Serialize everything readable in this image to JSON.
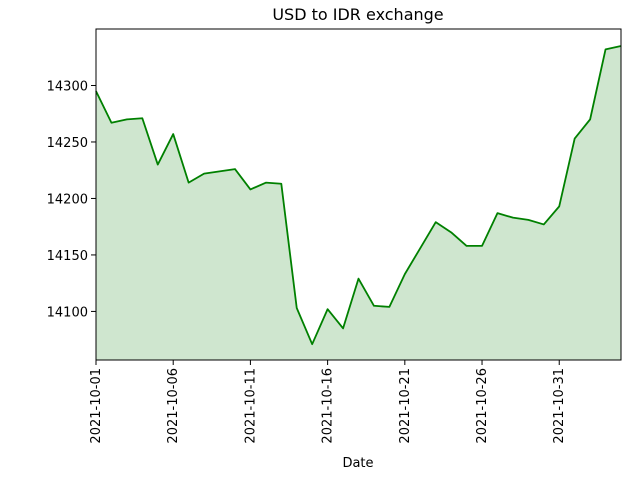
{
  "chart_data": {
    "type": "area",
    "title": "USD to IDR exchange",
    "xlabel": "Date",
    "ylabel": "",
    "x": [
      "2021-10-01",
      "2021-10-02",
      "2021-10-03",
      "2021-10-04",
      "2021-10-05",
      "2021-10-06",
      "2021-10-07",
      "2021-10-08",
      "2021-10-09",
      "2021-10-10",
      "2021-10-11",
      "2021-10-12",
      "2021-10-13",
      "2021-10-14",
      "2021-10-15",
      "2021-10-16",
      "2021-10-17",
      "2021-10-18",
      "2021-10-19",
      "2021-10-20",
      "2021-10-21",
      "2021-10-22",
      "2021-10-23",
      "2021-10-24",
      "2021-10-25",
      "2021-10-26",
      "2021-10-27",
      "2021-10-28",
      "2021-10-29",
      "2021-10-30",
      "2021-10-31",
      "2021-11-01",
      "2021-11-02",
      "2021-11-03",
      "2021-11-04"
    ],
    "series": [
      {
        "values": [
          14295,
          14267,
          14270,
          14271,
          14230,
          14257,
          14214,
          14222,
          14224,
          14226,
          14208,
          14214,
          14213,
          14103,
          14071,
          14102,
          14085,
          14129,
          14105,
          14104,
          14133,
          14156,
          14179,
          14170,
          14158,
          14158,
          14187,
          14183,
          14181,
          14177,
          14193,
          14253,
          14270,
          14332,
          14335
        ],
        "line_color": "#008000",
        "fill_color": "#cfe6cf"
      }
    ],
    "x_ticks": [
      "2021-10-01",
      "2021-10-06",
      "2021-10-11",
      "2021-10-16",
      "2021-10-21",
      "2021-10-26",
      "2021-10-31"
    ],
    "y_ticks": [
      14100,
      14150,
      14200,
      14250,
      14300
    ],
    "ylim": [
      14057,
      14350
    ],
    "grid": false,
    "legend": "none"
  }
}
